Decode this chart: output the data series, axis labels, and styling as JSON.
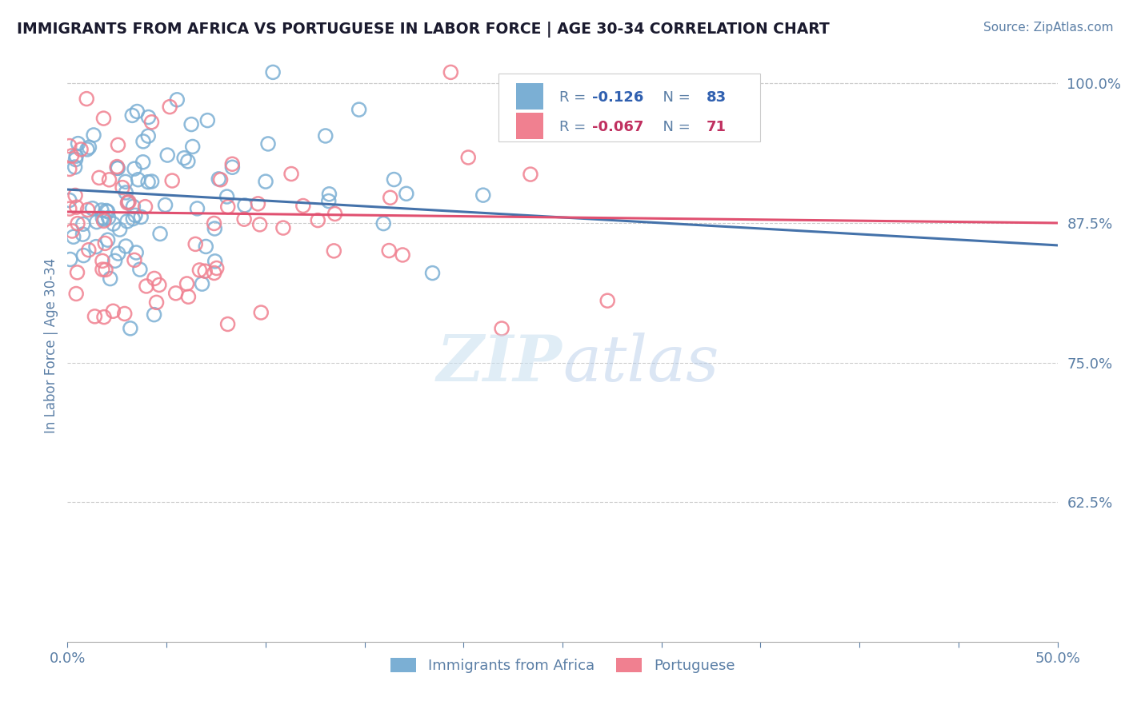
{
  "title": "IMMIGRANTS FROM AFRICA VS PORTUGUESE IN LABOR FORCE | AGE 30-34 CORRELATION CHART",
  "source": "Source: ZipAtlas.com",
  "ylabel": "In Labor Force | Age 30-34",
  "xlim": [
    0.0,
    0.5
  ],
  "ylim": [
    0.5,
    1.03
  ],
  "yticks": [
    0.625,
    0.75,
    0.875,
    1.0
  ],
  "ytick_labels": [
    "62.5%",
    "75.0%",
    "87.5%",
    "100.0%"
  ],
  "xticks": [
    0.0,
    0.05,
    0.1,
    0.15,
    0.2,
    0.25,
    0.3,
    0.35,
    0.4,
    0.45,
    0.5
  ],
  "blue_color": "#7bafd4",
  "pink_color": "#f08090",
  "blue_line_color": "#4472aa",
  "pink_line_color": "#e05070",
  "axis_color": "#5b7fa6",
  "grid_color": "#cccccc",
  "watermark_color": "#c8dff0",
  "blue_r": -0.126,
  "blue_n": 83,
  "pink_r": -0.067,
  "pink_n": 71,
  "blue_intercept": 0.905,
  "blue_slope": -0.1,
  "pink_intercept": 0.885,
  "pink_slope": -0.02
}
